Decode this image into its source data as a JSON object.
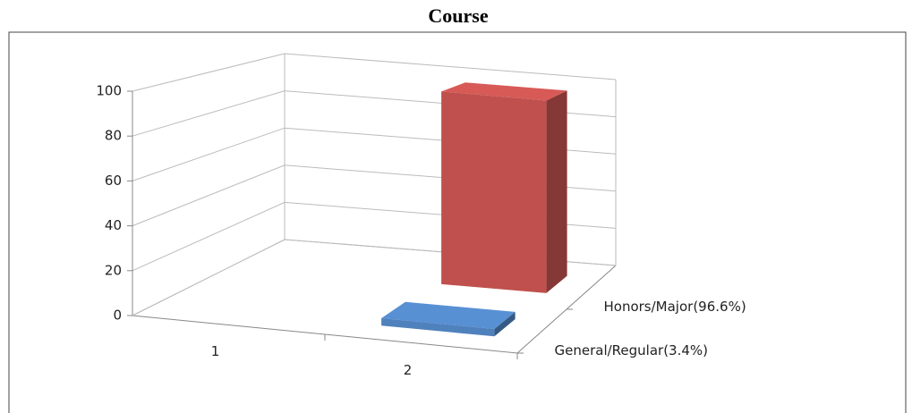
{
  "chart_data": {
    "type": "bar3d",
    "title": "Course",
    "categories": [
      "1",
      "2"
    ],
    "series": [
      {
        "name": "General/Regular(3.4%)",
        "color": "#4f81bd",
        "values": [
          null,
          3.4
        ]
      },
      {
        "name": "Honors/Major(96.6%)",
        "color": "#c0504d",
        "values": [
          null,
          96.6
        ]
      }
    ],
    "ylim": [
      0,
      100
    ],
    "yticks": [
      0,
      20,
      40,
      60,
      80,
      100
    ],
    "grid": true
  }
}
